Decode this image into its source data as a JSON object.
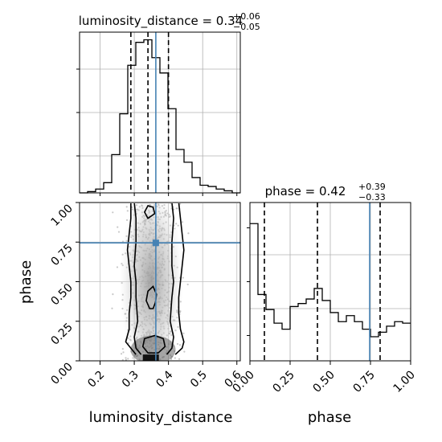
{
  "chart_data": {
    "type": "corner",
    "params": [
      "luminosity_distance",
      "phase"
    ],
    "xlabels": [
      "luminosity_distance",
      "phase"
    ],
    "ylabel": "phase",
    "titles": [
      {
        "label": "luminosity_distance = 0.34",
        "sup": "+0.06",
        "sub": "−0.05"
      },
      {
        "label": "phase = 0.42",
        "sup": "+0.39",
        "sub": "−0.33"
      }
    ],
    "ranges": {
      "luminosity_distance": [
        0.14,
        0.61
      ],
      "phase": [
        0.0,
        1.0
      ]
    },
    "ticks": {
      "luminosity_distance": {
        "values": [
          0.2,
          0.3,
          0.4,
          0.5,
          0.6
        ],
        "labels": [
          "0.2",
          "0.3",
          "0.4",
          "0.5",
          "0.6"
        ]
      },
      "phase": {
        "values": [
          0.0,
          0.25,
          0.5,
          0.75,
          1.0
        ],
        "labels": [
          "0.00",
          "0.25",
          "0.50",
          "0.75",
          "1.00"
        ]
      }
    },
    "truth": {
      "luminosity_distance": 0.363,
      "phase": 0.745
    },
    "quantiles": {
      "luminosity_distance": [
        0.29,
        0.34,
        0.4
      ],
      "phase": [
        0.09,
        0.42,
        0.81
      ]
    },
    "hist_luminosity_distance": {
      "edges": [
        0.14,
        0.1635,
        0.187,
        0.2105,
        0.234,
        0.2575,
        0.281,
        0.3045,
        0.328,
        0.3515,
        0.375,
        0.3985,
        0.422,
        0.4455,
        0.469,
        0.4925,
        0.516,
        0.5395,
        0.563,
        0.5865,
        0.61
      ],
      "counts": [
        0,
        0.5,
        1.5,
        4,
        15,
        31,
        50,
        59,
        60,
        53,
        47,
        33,
        17,
        12,
        6,
        3,
        2.5,
        1.5,
        0.8,
        0
      ]
    },
    "hist_phase": {
      "edges": [
        0.0,
        0.05,
        0.1,
        0.15,
        0.2,
        0.25,
        0.3,
        0.35,
        0.4,
        0.45,
        0.5,
        0.55,
        0.6,
        0.65,
        0.7,
        0.75,
        0.8,
        0.85,
        0.9,
        0.95,
        1.0
      ],
      "counts": [
        1.66,
        1.19,
        1.09,
        1.0,
        0.96,
        1.11,
        1.13,
        1.16,
        1.23,
        1.15,
        1.07,
        1.01,
        1.05,
        1.01,
        0.96,
        0.91,
        0.94,
        0.98,
        1.01,
        1.0
      ],
      "ylim": [
        0.75,
        1.8
      ]
    },
    "contours": [
      {
        "lum_at_phase": [
          [
            0.305,
            0.04
          ],
          [
            0.29,
            0.08
          ],
          [
            0.275,
            0.12
          ],
          [
            0.285,
            0.2
          ],
          [
            0.285,
            0.3
          ],
          [
            0.29,
            0.4
          ],
          [
            0.29,
            0.5
          ],
          [
            0.285,
            0.6
          ],
          [
            0.28,
            0.7
          ],
          [
            0.285,
            0.8
          ],
          [
            0.29,
            0.9
          ],
          [
            0.29,
            1.0
          ]
        ],
        "right": [
          [
            0.42,
            0.04
          ],
          [
            0.44,
            0.08
          ],
          [
            0.445,
            0.12
          ],
          [
            0.435,
            0.2
          ],
          [
            0.43,
            0.3
          ],
          [
            0.43,
            0.4
          ],
          [
            0.435,
            0.5
          ],
          [
            0.44,
            0.6
          ],
          [
            0.445,
            0.7
          ],
          [
            0.44,
            0.8
          ],
          [
            0.435,
            0.9
          ],
          [
            0.43,
            1.0
          ]
        ]
      },
      {
        "lum_at_phase": [
          [
            0.32,
            0.04
          ],
          [
            0.305,
            0.08
          ],
          [
            0.3,
            0.15
          ],
          [
            0.31,
            0.25
          ],
          [
            0.305,
            0.4
          ],
          [
            0.305,
            0.5
          ],
          [
            0.3,
            0.6
          ],
          [
            0.305,
            0.75
          ],
          [
            0.305,
            0.9
          ],
          [
            0.3,
            1.0
          ]
        ],
        "right": [
          [
            0.395,
            0.04
          ],
          [
            0.41,
            0.08
          ],
          [
            0.415,
            0.15
          ],
          [
            0.405,
            0.25
          ],
          [
            0.41,
            0.4
          ],
          [
            0.415,
            0.5
          ],
          [
            0.41,
            0.6
          ],
          [
            0.41,
            0.75
          ],
          [
            0.415,
            0.9
          ],
          [
            0.41,
            1.0
          ]
        ]
      }
    ],
    "grid": true,
    "legend": "none"
  }
}
